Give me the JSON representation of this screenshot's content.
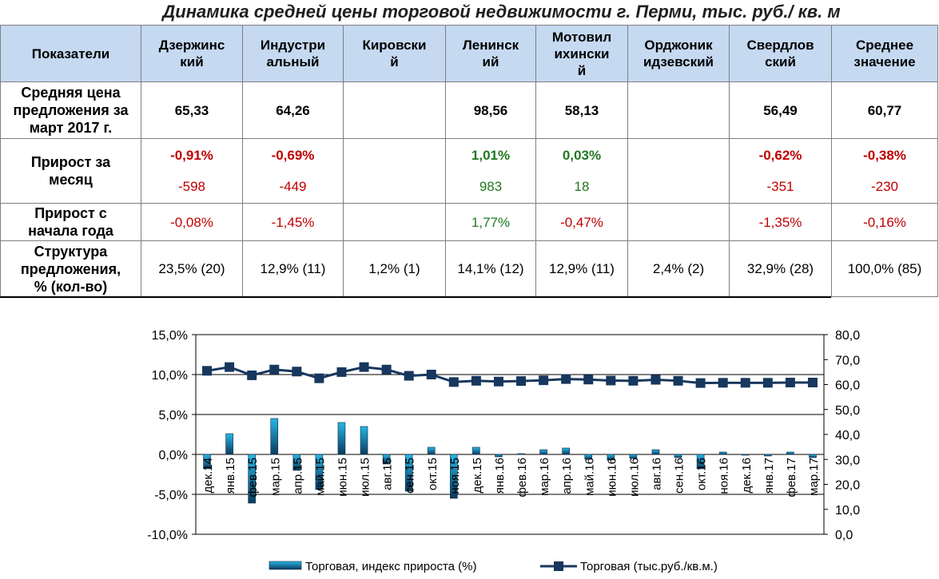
{
  "title": "Динамика средней цены торговой недвижимости г. Перми, тыс. руб./ кв. м",
  "table": {
    "header": {
      "label": "Показатели",
      "columns": [
        {
          "line1": "Дзержинс",
          "line2": "кий"
        },
        {
          "line1": "Индустри",
          "line2": "альный"
        },
        {
          "line1": "Кировски",
          "line2": "й"
        },
        {
          "line1": "Ленинск",
          "line2": "ий"
        },
        {
          "line1": "Мотовил",
          "line2": "ихински",
          "line3": "й"
        },
        {
          "line1": "Орджоник",
          "line2": "идзевский"
        },
        {
          "line1": "Свердлов",
          "line2": "ский"
        },
        {
          "line1": "Среднее",
          "line2": "значение"
        }
      ]
    },
    "price_row": {
      "label_l1": "Средняя цена",
      "label_l2": "предложения за",
      "label_l3": "март 2017 г.",
      "values": [
        "65,33",
        "64,26",
        "",
        "98,56",
        "58,13",
        "",
        "56,49",
        "60,77"
      ]
    },
    "month_row": {
      "label_l1": "Прирост за",
      "label_l2": "месяц",
      "pct": [
        "-0,91%",
        "-0,69%",
        "",
        "1,01%",
        "0,03%",
        "",
        "-0,62%",
        "-0,38%"
      ],
      "abs": [
        "-598",
        "-449",
        "",
        "983",
        "18",
        "",
        "-351",
        "-230"
      ]
    },
    "ytd_row": {
      "label_l1": "Прирост с",
      "label_l2": "начала года",
      "values": [
        "-0,08%",
        "-1,45%",
        "",
        "1,77%",
        "-0,47%",
        "",
        "-1,35%",
        "-0,16%"
      ]
    },
    "structure_row": {
      "label_l1": "Структура",
      "label_l2": "предложения,",
      "label_l3": "% (кол-во)",
      "values": [
        "23,5% (20)",
        "12,9% (11)",
        "1,2% (1)",
        "14,1% (12)",
        "12,9% (11)",
        "2,4% (2)",
        "32,9% (28)",
        "100,0% (85)"
      ]
    }
  },
  "chart_data": {
    "type": "bar",
    "title": "",
    "categories": [
      "дек.14",
      "янв.15",
      "фев.15",
      "мар.15",
      "апр.15",
      "май.15",
      "июн.15",
      "июл.15",
      "авг.15",
      "сен.15",
      "окт.15",
      "ноя.15",
      "дек.15",
      "янв.16",
      "фев.16",
      "мар.16",
      "апр.16",
      "май.16",
      "июн.16",
      "июл.16",
      "авг.16",
      "сен.16",
      "окт.16",
      "ноя.16",
      "дек.16",
      "янв.17",
      "фев.17",
      "мар.17"
    ],
    "series": [
      {
        "name": "Торговая, индекс прироста (%)",
        "type": "bar",
        "axis": "left",
        "values": [
          -1.8,
          2.6,
          -6.1,
          4.5,
          -2.0,
          -4.4,
          4.0,
          3.5,
          -1.2,
          -4.6,
          0.9,
          -5.5,
          0.9,
          -0.3,
          0.1,
          0.6,
          0.8,
          -0.6,
          -0.7,
          -0.5,
          0.6,
          -0.4,
          -1.8,
          0.3,
          -0.1,
          -0.2,
          0.3,
          -0.4
        ]
      },
      {
        "name": "Торговая (тыс.руб./кв.м.)",
        "type": "line",
        "axis": "right",
        "values": [
          65.5,
          67.0,
          63.7,
          66.0,
          65.2,
          62.5,
          65.0,
          67.0,
          66.0,
          63.5,
          64.0,
          61.0,
          61.5,
          61.2,
          61.4,
          61.7,
          62.2,
          62.0,
          61.6,
          61.5,
          61.9,
          61.5,
          60.6,
          60.7,
          60.7,
          60.7,
          60.8,
          60.8
        ]
      }
    ],
    "y_left": {
      "min": -10,
      "max": 15,
      "step": 5,
      "tick_labels": [
        "-10,0%",
        "-5,0%",
        "0,0%",
        "5,0%",
        "10,0%",
        "15,0%"
      ]
    },
    "y_right": {
      "min": 0,
      "max": 80,
      "step": 10,
      "tick_labels": [
        "0,0",
        "10,0",
        "20,0",
        "30,0",
        "40,0",
        "50,0",
        "60,0",
        "70,0",
        "80,0"
      ]
    },
    "grid": "horizontal",
    "legend": {
      "position": "bottom",
      "bar_label": "Торговая, индекс прироста (%)",
      "line_label": "Торговая (тыс.руб./кв.м.)"
    },
    "colors": {
      "bar_top": "#27b6e6",
      "bar_bottom": "#0b3a5e",
      "line": "#17375e",
      "grid": "#000000"
    }
  }
}
